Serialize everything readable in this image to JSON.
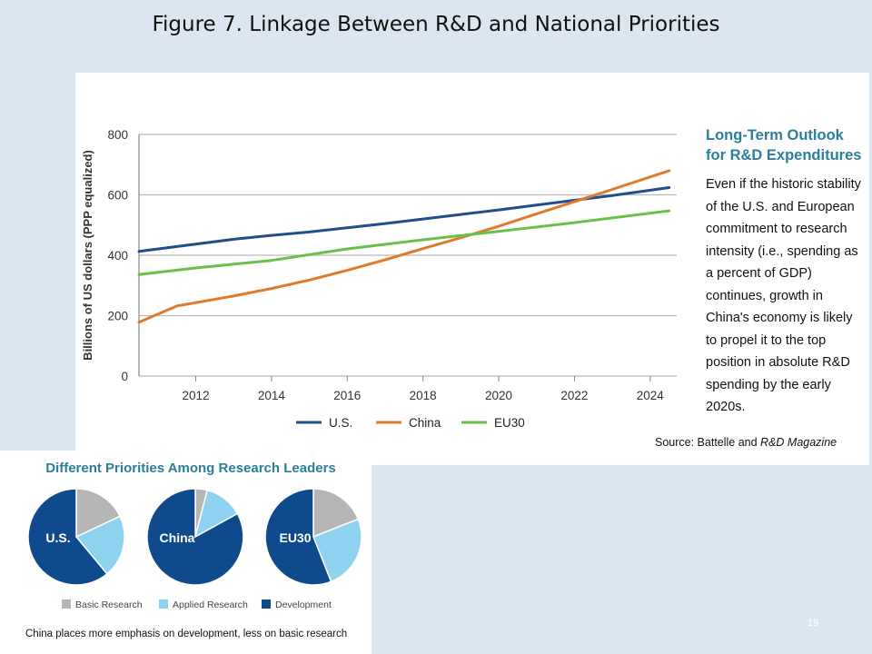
{
  "slide": {
    "title": "Figure 7. Linkage Between R&D and National Priorities",
    "page_number": "19"
  },
  "outlook": {
    "title_line1": "Long-Term Outlook",
    "title_line2": "for R&D Expenditures",
    "body": "Even if the historic stability of the U.S. and European commitment to research intensity (i.e., spending as a percent of GDP) continues, growth in China's economy is likely to propel it to the top position in absolute R&D spending by the early 2020s.",
    "source_prefix": "Source:  Battelle and ",
    "source_magazine": "R&D Magazine"
  },
  "chart_data": [
    {
      "type": "line",
      "title": "",
      "xlabel": "",
      "ylabel": "Billions of US dollars (PPP equalized)",
      "xlim": [
        2010.5,
        2024.7
      ],
      "ylim": [
        0,
        800
      ],
      "yticks": [
        0,
        200,
        400,
        600,
        800
      ],
      "xticks": [
        2012,
        2014,
        2016,
        2018,
        2020,
        2022,
        2024
      ],
      "grid": true,
      "legend": "bottom",
      "series": [
        {
          "name": "U.S.",
          "color": "#1f4e8c",
          "x": [
            2010.5,
            2012,
            2013,
            2014,
            2015,
            2016,
            2017,
            2018,
            2019,
            2020,
            2021,
            2022,
            2023,
            2024.5
          ],
          "y": [
            413,
            437,
            453,
            466,
            477,
            491,
            505,
            520,
            535,
            550,
            566,
            582,
            598,
            624
          ]
        },
        {
          "name": "China",
          "color": "#e07b2c",
          "x": [
            2010.5,
            2011.5,
            2013,
            2014,
            2015,
            2016,
            2017,
            2018,
            2019,
            2020,
            2021,
            2022,
            2023,
            2024.5
          ],
          "y": [
            178,
            232,
            265,
            290,
            318,
            350,
            385,
            422,
            458,
            496,
            537,
            577,
            618,
            680
          ]
        },
        {
          "name": "EU30",
          "color": "#6cbf4a",
          "x": [
            2010.5,
            2012,
            2014,
            2016,
            2018,
            2020,
            2022,
            2024.5
          ],
          "y": [
            336,
            358,
            383,
            421,
            451,
            479,
            508,
            547
          ]
        }
      ]
    },
    {
      "type": "pie",
      "title": "Different Priorities Among Research Leaders",
      "legend": "bottom",
      "categories": [
        "Basic Research",
        "Applied Research",
        "Development"
      ],
      "colors": [
        "#b5b5b5",
        "#8fd2f0",
        "#0e4a8c"
      ],
      "pies": [
        {
          "name": "U.S.",
          "values": [
            18,
            21,
            61
          ]
        },
        {
          "name": "China",
          "values": [
            4,
            13,
            83
          ]
        },
        {
          "name": "EU30",
          "values": [
            19,
            25,
            56
          ]
        }
      ],
      "caption": "China places more emphasis on development, less on basic research"
    }
  ]
}
